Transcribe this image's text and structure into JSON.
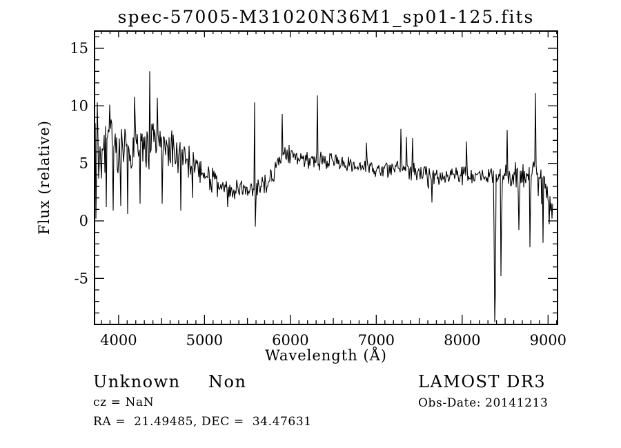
{
  "title": "spec-57005-M31020N36M1_sp01-125.fits",
  "footer": {
    "classification": "Unknown",
    "subclass": "Non",
    "cz_line": "cz = NaN",
    "radec_line": "RA =  21.49485, DEC =  34.47631",
    "survey": "LAMOST DR3",
    "obs_date_line": "Obs-Date: 20141213"
  },
  "chart_data": {
    "type": "line",
    "title": "spec-57005-M31020N36M1_sp01-125.fits",
    "xlabel": "Wavelength (Å)",
    "ylabel": "Flux (relative)",
    "xlim": [
      3720,
      9110
    ],
    "ylim": [
      -9,
      16.5
    ],
    "xticks_major": [
      4000,
      5000,
      6000,
      7000,
      8000,
      9000
    ],
    "xtick_minor_step": 100,
    "xtick_medium_step": 500,
    "yticks_major": [
      -5,
      0,
      5,
      10,
      15
    ],
    "ytick_minor_step": 1,
    "grid": false,
    "legend": "none",
    "line_color": "#000000",
    "background_color": "#ffffff",
    "series_name": "flux",
    "data_start_wavelength": 3720,
    "data_end_wavelength": 9050,
    "continuum_points_wavelength_flux": [
      [
        3720,
        5.2
      ],
      [
        3760,
        6.2
      ],
      [
        3800,
        6.3
      ],
      [
        3900,
        6.2
      ],
      [
        4000,
        6.1
      ],
      [
        4100,
        6.3
      ],
      [
        4250,
        6.5
      ],
      [
        4400,
        6.6
      ],
      [
        4500,
        6.4
      ],
      [
        4600,
        6.1
      ],
      [
        4700,
        5.6
      ],
      [
        4800,
        5.2
      ],
      [
        4900,
        4.6
      ],
      [
        5000,
        3.9
      ],
      [
        5100,
        3.4
      ],
      [
        5200,
        3.0
      ],
      [
        5300,
        2.7
      ],
      [
        5450,
        2.5
      ],
      [
        5600,
        2.7
      ],
      [
        5700,
        3.1
      ],
      [
        5780,
        3.6
      ],
      [
        5850,
        5.2
      ],
      [
        5950,
        5.9
      ],
      [
        6100,
        5.6
      ],
      [
        6300,
        5.3
      ],
      [
        6500,
        5.1
      ],
      [
        6700,
        4.8
      ],
      [
        6900,
        4.6
      ],
      [
        7100,
        4.4
      ],
      [
        7300,
        4.5
      ],
      [
        7500,
        4.2
      ],
      [
        7700,
        4.0
      ],
      [
        7900,
        4.05
      ],
      [
        8100,
        3.9
      ],
      [
        8300,
        3.9
      ],
      [
        8500,
        4.0
      ],
      [
        8700,
        3.95
      ],
      [
        8800,
        4.3
      ],
      [
        8900,
        3.6
      ],
      [
        8980,
        3.0
      ],
      [
        9050,
        1.0
      ]
    ],
    "noise_halfamplitude_wavelength_amp": [
      [
        3720,
        3.3
      ],
      [
        3850,
        3.0
      ],
      [
        4000,
        2.6
      ],
      [
        4200,
        2.2
      ],
      [
        4400,
        1.9
      ],
      [
        4600,
        1.6
      ],
      [
        4800,
        1.4
      ],
      [
        5000,
        1.1
      ],
      [
        5300,
        0.85
      ],
      [
        5600,
        0.8
      ],
      [
        5900,
        0.95
      ],
      [
        6200,
        0.8
      ],
      [
        6600,
        0.7
      ],
      [
        7000,
        0.65
      ],
      [
        7400,
        0.75
      ],
      [
        7800,
        0.7
      ],
      [
        8200,
        0.8
      ],
      [
        8500,
        0.9
      ],
      [
        8650,
        1.3
      ],
      [
        8800,
        1.1
      ],
      [
        8900,
        1.7
      ],
      [
        9050,
        1.0
      ]
    ],
    "features_columns": [
      "wavelength",
      "peak_flux",
      "width_angstrom"
    ],
    "features": [
      [
        3733,
        0.2,
        4
      ],
      [
        3750,
        10.3,
        4
      ],
      [
        3860,
        1.2,
        4
      ],
      [
        3898,
        10.1,
        4
      ],
      [
        3935,
        0.9,
        4
      ],
      [
        4025,
        1.3,
        4
      ],
      [
        4103,
        0.6,
        4
      ],
      [
        4185,
        10.8,
        4
      ],
      [
        4250,
        1.5,
        4
      ],
      [
        4364,
        13.0,
        5
      ],
      [
        4450,
        10.7,
        4
      ],
      [
        4510,
        1.5,
        4
      ],
      [
        4725,
        0.9,
        4
      ],
      [
        4863,
        2.0,
        4
      ],
      [
        5270,
        1.2,
        4
      ],
      [
        5583,
        10.3,
        4
      ],
      [
        5595,
        -0.5,
        4
      ],
      [
        5905,
        9.3,
        4
      ],
      [
        6315,
        10.9,
        4
      ],
      [
        6888,
        6.8,
        4
      ],
      [
        7290,
        8.0,
        4
      ],
      [
        7350,
        7.3,
        4
      ],
      [
        7420,
        7.2,
        4
      ],
      [
        7605,
        2.8,
        7
      ],
      [
        7645,
        1.6,
        5
      ],
      [
        8053,
        6.9,
        4
      ],
      [
        8375,
        -8.8,
        5
      ],
      [
        8388,
        -6.0,
        4
      ],
      [
        8455,
        -4.8,
        6
      ],
      [
        8522,
        7.9,
        4
      ],
      [
        8660,
        -0.8,
        7
      ],
      [
        8790,
        -2.3,
        6
      ],
      [
        8850,
        11.1,
        4
      ],
      [
        8940,
        -1.9,
        6
      ],
      [
        9010,
        -0.3,
        5
      ],
      [
        9045,
        0.2,
        5
      ]
    ]
  }
}
